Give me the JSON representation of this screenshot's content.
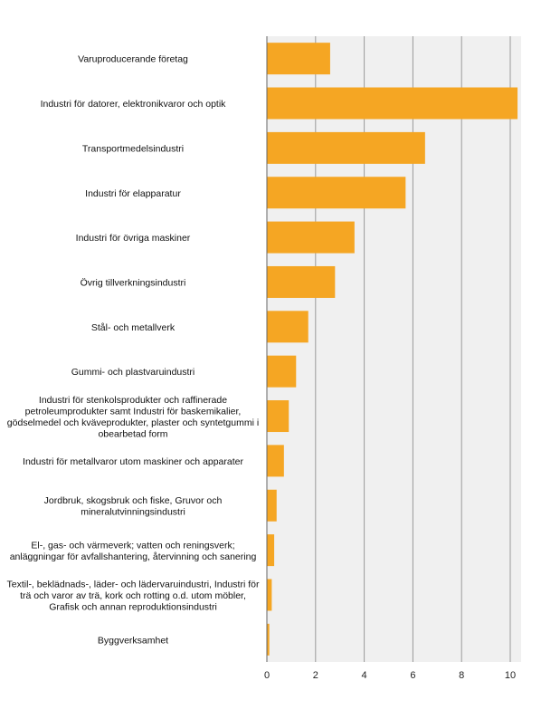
{
  "chart_data": {
    "type": "bar",
    "orientation": "horizontal",
    "categories": [
      [
        "Varuproducerande företag"
      ],
      [
        "Industri för  datorer, elektronikvaror och optik"
      ],
      [
        "Transportmedelsindustri"
      ],
      [
        "Industri för elapparatur"
      ],
      [
        "Industri för övriga maskiner"
      ],
      [
        "Övrig tillverkningsindustri"
      ],
      [
        "Stål- och metallverk"
      ],
      [
        "Gummi- och plastvaruindustri"
      ],
      [
        "Industri för stenkolsprodukter och raffinerade",
        "petroleumprodukter samt Industri för baskemikalier,",
        "gödselmedel och kväveprodukter, plaster och syntetgummi i",
        "obearbetad form"
      ],
      [
        "Industri för metallvaror utom maskiner och apparater"
      ],
      [
        "Jordbruk, skogsbruk och fiske, Gruvor och",
        "mineralutvinningsindustri"
      ],
      [
        "El-, gas- och värmeverk; vatten och reningsverk;",
        "anläggningar för avfallshantering, återvinning och sanering"
      ],
      [
        "Textil-, beklädnads-, läder- och lädervaruindustri, Industri för",
        "trä och varor av trä, kork och rotting o.d. utom möbler,",
        "Grafisk och annan reproduktionsindustri"
      ],
      [
        "Byggverksamhet"
      ]
    ],
    "values": [
      2.6,
      10.3,
      6.5,
      5.7,
      3.6,
      2.8,
      1.7,
      1.2,
      0.9,
      0.7,
      0.4,
      0.3,
      0.2,
      0.1
    ],
    "xlim": [
      0,
      10.5
    ],
    "xticks": [
      "0",
      "2",
      "4",
      "6",
      "8",
      "10"
    ],
    "xtick_values": [
      0,
      2,
      4,
      6,
      8,
      10
    ],
    "grid": "vertical",
    "colors": {
      "bar": "#F5A623",
      "plot_bg": "#F0F0F0",
      "grid": "#9A9A9A",
      "axis": "#666666"
    }
  }
}
